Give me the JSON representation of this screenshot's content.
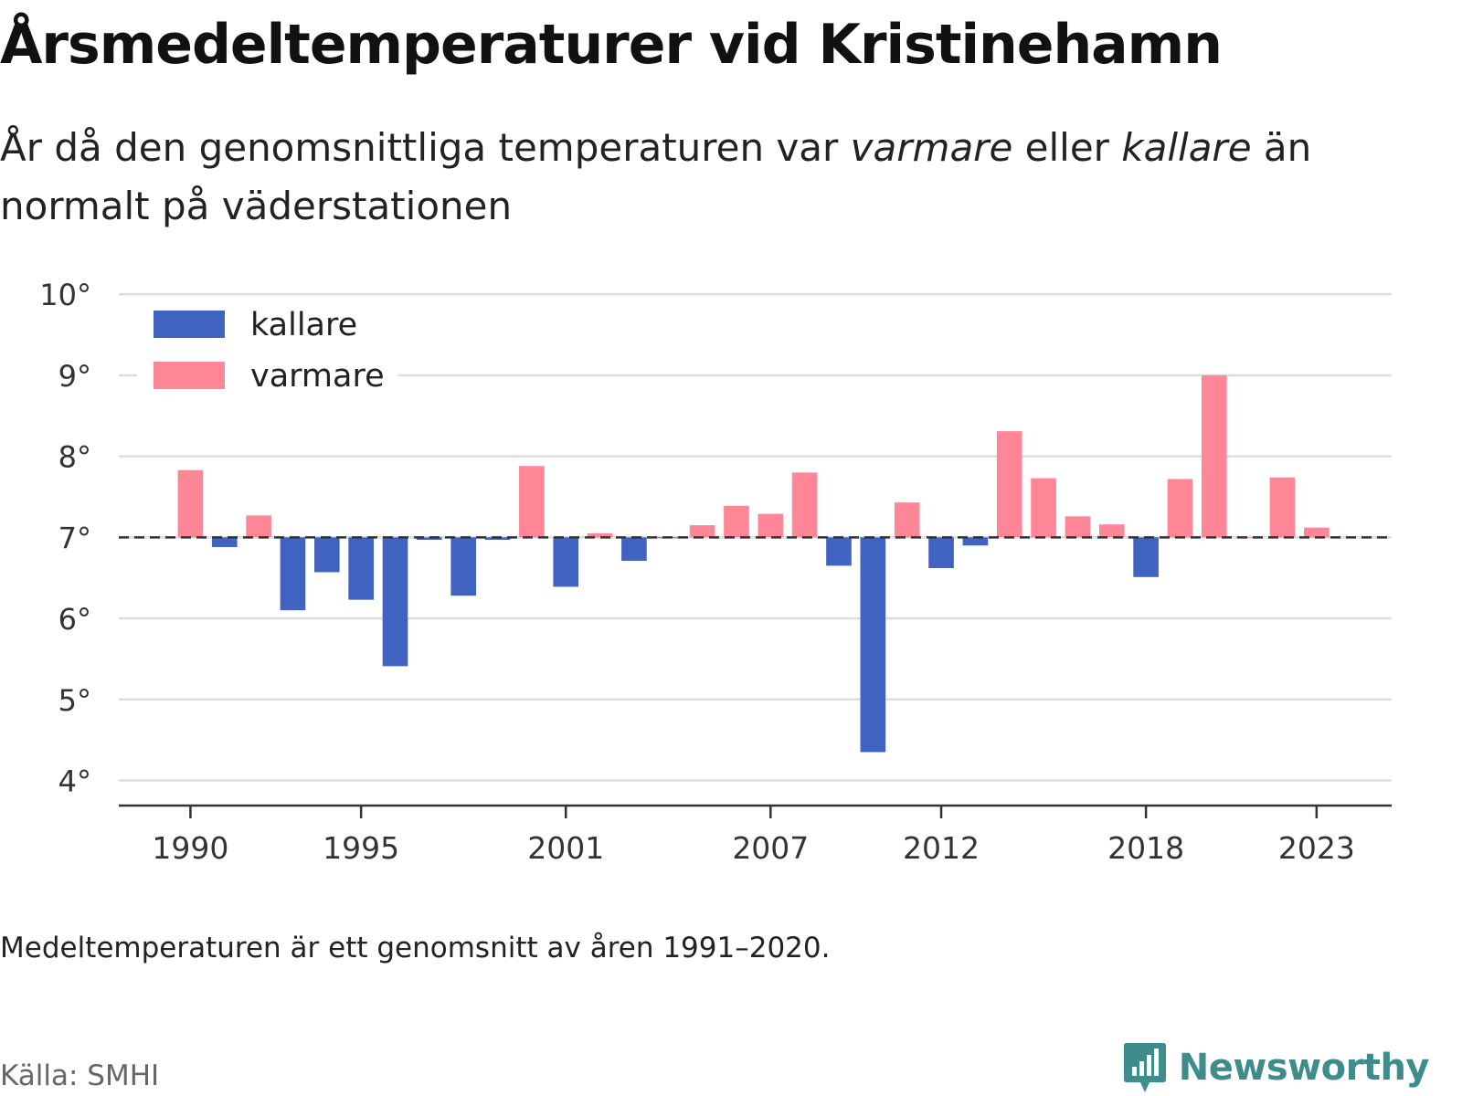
{
  "title": "Årsmedeltemperaturer vid Kristinehamn",
  "subtitle": {
    "part1": "År då den genomsnittliga temperaturen var ",
    "em1": "varmare",
    "part2": " eller ",
    "em2": "kallare",
    "part3": " än normalt på väderstationen"
  },
  "note": "Medeltemperaturen är ett genomsnitt av åren 1991–2020.",
  "source": "Källa: SMHI",
  "brand": {
    "name": "Newsworthy",
    "icon": "newsworthy-logo-icon",
    "color": "#3e8d8c"
  },
  "chart_data": {
    "type": "bar",
    "x": [
      1990,
      1991,
      1992,
      1993,
      1994,
      1995,
      1996,
      1997,
      1998,
      1999,
      2000,
      2001,
      2002,
      2003,
      2004,
      2005,
      2006,
      2007,
      2008,
      2009,
      2010,
      2011,
      2012,
      2013,
      2014,
      2015,
      2016,
      2017,
      2018,
      2019,
      2020,
      2021,
      2022,
      2023
    ],
    "values": [
      7.83,
      6.88,
      7.27,
      6.1,
      6.57,
      6.23,
      5.41,
      6.97,
      6.28,
      6.97,
      7.88,
      6.39,
      7.05,
      6.71,
      6.99,
      7.15,
      7.39,
      7.29,
      7.8,
      6.65,
      4.35,
      7.43,
      6.62,
      6.9,
      8.31,
      7.73,
      7.26,
      7.16,
      6.51,
      7.72,
      9.0,
      7.0,
      7.74,
      7.12
    ],
    "baseline": 7.0,
    "ylim": [
      3.6,
      10.25
    ],
    "yticks": [
      4,
      5,
      6,
      7,
      8,
      9,
      10
    ],
    "ytick_labels": [
      "4°",
      "5°",
      "6°",
      "7°",
      "8°",
      "9°",
      "10°"
    ],
    "xticks": [
      1990,
      1995,
      2001,
      2007,
      2012,
      2018,
      2023
    ],
    "xtick_labels": [
      "1990",
      "1995",
      "2001",
      "2007",
      "2012",
      "2018",
      "2023"
    ],
    "xlim": [
      1987.9,
      2025.2
    ],
    "legend": [
      {
        "name": "kallare",
        "color": "#4063c1"
      },
      {
        "name": "varmare",
        "color": "#fe8696"
      }
    ],
    "legend_position": "top-left",
    "grid": true,
    "colors": {
      "colder": "#4063c1",
      "warmer": "#fe8696",
      "grid": "#dddddd",
      "baseline": "#333333",
      "axis": "#333333"
    }
  }
}
